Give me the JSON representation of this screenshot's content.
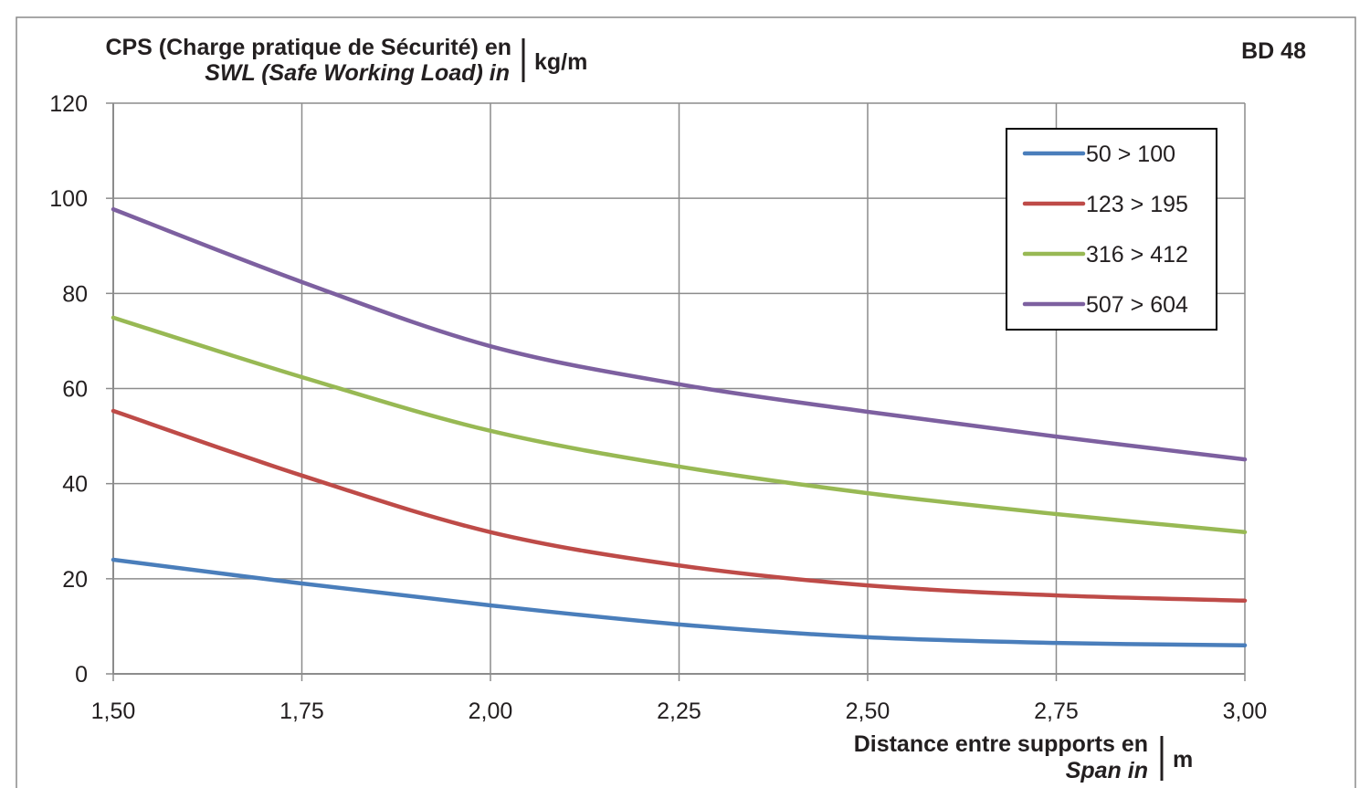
{
  "chart_data": {
    "type": "line",
    "title": "",
    "corner_label": "BD 48",
    "ylabel": {
      "line1": "CPS (Charge pratique de Sécurité) en",
      "line2": "SWL (Safe Working Load) in",
      "unit": "kg/m"
    },
    "xlabel": {
      "line1": "Distance entre supports en",
      "line2": "Span in",
      "unit": "m"
    },
    "x": [
      1.5,
      1.75,
      2.0,
      2.25,
      2.5,
      2.75,
      3.0
    ],
    "x_tick_labels": [
      "1,50",
      "1,75",
      "2,00",
      "2,25",
      "2,50",
      "2,75",
      "3,00"
    ],
    "y_tick_labels": [
      "0",
      "20",
      "40",
      "60",
      "80",
      "100",
      "120"
    ],
    "y_ticks": [
      0,
      20,
      40,
      60,
      80,
      100,
      120
    ],
    "xlim": [
      1.5,
      3.0
    ],
    "ylim": [
      0,
      120
    ],
    "grid": true,
    "legend_position": "top-right",
    "series": [
      {
        "name": "50 > 100",
        "color": "#4a7ebb",
        "values": [
          24,
          19,
          14.4,
          10.4,
          7.7,
          6.5,
          6
        ]
      },
      {
        "name": "123 > 195",
        "color": "#be4b48",
        "values": [
          55.3,
          41.7,
          29.8,
          22.8,
          18.6,
          16.5,
          15.4
        ]
      },
      {
        "name": "316 > 412",
        "color": "#98b954",
        "values": [
          74.9,
          62.4,
          51.1,
          43.6,
          38,
          33.6,
          29.8
        ]
      },
      {
        "name": "507 > 604",
        "color": "#7d60a0",
        "values": [
          97.7,
          82.4,
          68.9,
          60.9,
          55.1,
          49.9,
          45.1
        ]
      }
    ]
  }
}
